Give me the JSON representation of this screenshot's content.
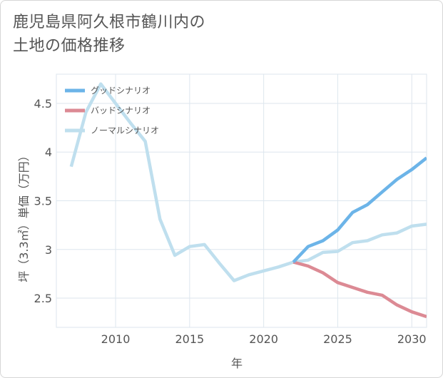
{
  "title": {
    "line1": "鹿児島県阿久根市鶴川内の",
    "line2": "土地の価格推移"
  },
  "chart_data": {
    "type": "line",
    "xlabel": "年",
    "ylabel": "坪（3.3㎡）単価（万円）",
    "xlim": [
      2006,
      2031
    ],
    "ylim": [
      2.2,
      4.8
    ],
    "xticks": [
      2010,
      2015,
      2020,
      2025,
      2030
    ],
    "yticks": [
      2.5,
      3,
      3.5,
      4,
      4.5
    ],
    "xtick_labels": [
      "2010",
      "2015",
      "2020",
      "2025",
      "2030"
    ],
    "ytick_labels": [
      "2.5",
      "3",
      "3.5",
      "4",
      "4.5"
    ],
    "grid": true,
    "legend_position": "top-left",
    "series": [
      {
        "name": "グッドシナリオ",
        "color": "#6cb4e8",
        "x": [
          2022,
          2023,
          2024,
          2025,
          2026,
          2027,
          2028,
          2029,
          2030,
          2031
        ],
        "y": [
          2.87,
          3.03,
          3.09,
          3.2,
          3.38,
          3.46,
          3.59,
          3.72,
          3.82,
          3.94
        ]
      },
      {
        "name": "バッドシナリオ",
        "color": "#dc8a94",
        "x": [
          2022,
          2023,
          2024,
          2025,
          2026,
          2027,
          2028,
          2029,
          2030,
          2031
        ],
        "y": [
          2.87,
          2.83,
          2.76,
          2.66,
          2.61,
          2.56,
          2.53,
          2.43,
          2.36,
          2.31
        ]
      },
      {
        "name": "ノーマルシナリオ",
        "color": "#bfdfee",
        "x": [
          2007,
          2008,
          2009,
          2010,
          2011,
          2012,
          2013,
          2014,
          2015,
          2016,
          2017,
          2018,
          2019,
          2020,
          2021,
          2022,
          2023,
          2024,
          2025,
          2026,
          2027,
          2028,
          2029,
          2030,
          2031
        ],
        "y": [
          3.85,
          4.41,
          4.7,
          4.5,
          4.3,
          4.11,
          3.31,
          2.94,
          3.03,
          3.05,
          2.86,
          2.68,
          2.74,
          2.78,
          2.82,
          2.87,
          2.89,
          2.97,
          2.98,
          3.07,
          3.09,
          3.15,
          3.17,
          3.24,
          3.26
        ]
      }
    ]
  }
}
